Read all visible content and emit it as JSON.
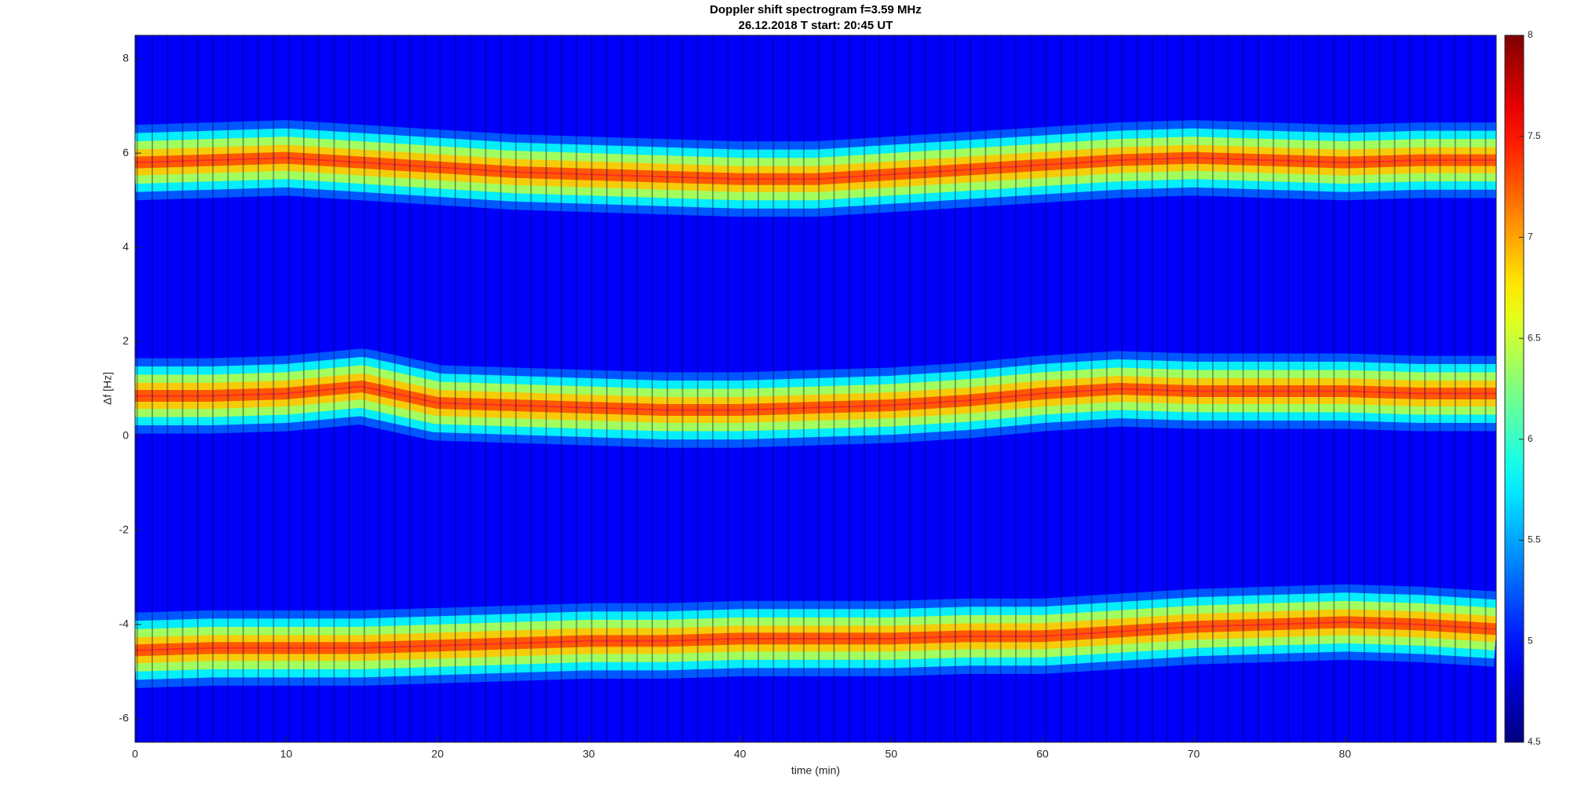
{
  "chart_data": {
    "type": "spectrogram",
    "title": "Doppler shift spectrogram f=3.59 MHz",
    "subtitle": "26.12.2018   T start: 20:45 UT",
    "x_label": "time (min)",
    "y_label": "Δf [Hz]",
    "xlim": [
      0,
      90
    ],
    "xticks": [
      0,
      10,
      20,
      30,
      40,
      50,
      60,
      70,
      80
    ],
    "ylim": [
      -6.5,
      8.5
    ],
    "yticks": [
      -6,
      -4,
      -2,
      0,
      2,
      4,
      6,
      8
    ],
    "colormap": "jet",
    "clim": [
      4.5,
      8
    ],
    "cticks": [
      4.5,
      5,
      5.5,
      6,
      6.5,
      7,
      7.5,
      8
    ],
    "trace_color": "#ff2a2a",
    "x": [
      0,
      5,
      10,
      15,
      20,
      25,
      30,
      35,
      40,
      45,
      50,
      55,
      60,
      65,
      70,
      75,
      80,
      85,
      90
    ],
    "series": [
      {
        "values": [
          5.8,
          5.85,
          5.9,
          5.8,
          5.7,
          5.6,
          5.55,
          5.5,
          5.45,
          5.45,
          5.55,
          5.65,
          5.75,
          5.85,
          5.9,
          5.85,
          5.8,
          5.85,
          5.85
        ]
      },
      {
        "values": [
          0.85,
          0.85,
          0.9,
          1.05,
          0.7,
          0.65,
          0.6,
          0.55,
          0.55,
          0.6,
          0.65,
          0.75,
          0.9,
          1.0,
          0.95,
          0.95,
          0.95,
          0.9,
          0.9
        ]
      },
      {
        "values": [
          -4.55,
          -4.5,
          -4.5,
          -4.5,
          -4.45,
          -4.4,
          -4.35,
          -4.35,
          -4.3,
          -4.3,
          -4.3,
          -4.25,
          -4.25,
          -4.15,
          -4.05,
          -4.0,
          -3.95,
          -4.0,
          -4.1
        ]
      }
    ]
  }
}
